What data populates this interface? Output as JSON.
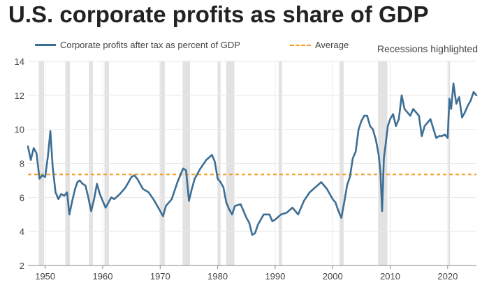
{
  "chart_data": {
    "type": "line",
    "title": "U.S. corporate profits as share of GDP",
    "xlabel": "",
    "ylabel": "",
    "xlim": [
      1947,
      2025
    ],
    "ylim": [
      2,
      14
    ],
    "x_ticks": [
      1950,
      1960,
      1970,
      1980,
      1990,
      2000,
      2010,
      2020
    ],
    "y_ticks": [
      2,
      4,
      6,
      8,
      10,
      12,
      14
    ],
    "legend": {
      "series_label": "Corporate profits after tax as percent of GDP",
      "average_label": "Average",
      "recessions_label": "Recessions highlighted"
    },
    "average": 7.35,
    "recessions": [
      [
        1948.9,
        1949.8
      ],
      [
        1953.5,
        1954.3
      ],
      [
        1957.6,
        1958.3
      ],
      [
        1960.3,
        1961.1
      ],
      [
        1969.9,
        1970.8
      ],
      [
        1973.9,
        1975.2
      ],
      [
        1980.0,
        1980.5
      ],
      [
        1981.5,
        1982.9
      ],
      [
        1990.6,
        1991.2
      ],
      [
        2001.2,
        2001.9
      ],
      [
        2007.9,
        2009.5
      ],
      [
        2020.1,
        2020.4
      ]
    ],
    "series": [
      {
        "name": "Corporate profits after tax as percent of GDP",
        "x": [
          1947.0,
          1947.5,
          1948.0,
          1948.5,
          1949.0,
          1949.5,
          1950.0,
          1950.5,
          1950.9,
          1951.3,
          1951.8,
          1952.3,
          1952.8,
          1953.3,
          1953.8,
          1954.2,
          1954.7,
          1955.2,
          1955.6,
          1956.0,
          1956.5,
          1957.0,
          1957.5,
          1958.0,
          1958.5,
          1959.0,
          1959.5,
          1960.0,
          1960.5,
          1961.0,
          1961.5,
          1962.0,
          1963.0,
          1964.0,
          1965.0,
          1965.5,
          1966.0,
          1967.0,
          1968.0,
          1969.0,
          1970.0,
          1970.5,
          1971.0,
          1972.0,
          1973.0,
          1974.0,
          1974.5,
          1975.0,
          1975.5,
          1976.0,
          1977.0,
          1978.0,
          1979.0,
          1979.5,
          1980.0,
          1980.5,
          1981.0,
          1981.5,
          1982.0,
          1982.5,
          1983.0,
          1984.0,
          1985.0,
          1985.5,
          1986.0,
          1986.5,
          1987.0,
          1988.0,
          1989.0,
          1989.5,
          1990.0,
          1991.0,
          1992.0,
          1993.0,
          1994.0,
          1995.0,
          1996.0,
          1997.0,
          1998.0,
          1999.0,
          2000.0,
          2000.5,
          2001.0,
          2001.5,
          2002.0,
          2002.5,
          2003.0,
          2003.5,
          2004.0,
          2004.5,
          2005.0,
          2005.5,
          2006.0,
          2006.5,
          2007.0,
          2007.5,
          2008.0,
          2008.3,
          2008.6,
          2008.9,
          2009.2,
          2009.6,
          2010.0,
          2010.5,
          2011.0,
          2011.5,
          2012.0,
          2012.5,
          2013.0,
          2013.5,
          2014.0,
          2015.0,
          2015.5,
          2016.0,
          2017.0,
          2018.0,
          2018.5,
          2019.0,
          2019.5,
          2020.0,
          2020.3,
          2020.6,
          2021.0,
          2021.5,
          2022.0,
          2022.5,
          2023.0,
          2023.5,
          2024.0,
          2024.5,
          2025.0
        ],
        "y": [
          9.0,
          8.2,
          8.9,
          8.6,
          7.1,
          7.3,
          7.2,
          8.5,
          9.9,
          7.8,
          6.3,
          5.9,
          6.2,
          6.1,
          6.3,
          5.0,
          5.8,
          6.5,
          6.9,
          7.0,
          6.8,
          6.7,
          6.0,
          5.2,
          5.9,
          6.8,
          6.2,
          5.8,
          5.4,
          5.7,
          6.0,
          5.9,
          6.2,
          6.6,
          7.2,
          7.3,
          7.1,
          6.5,
          6.3,
          5.8,
          5.2,
          4.9,
          5.5,
          5.9,
          6.9,
          7.7,
          7.6,
          5.8,
          6.5,
          7.1,
          7.7,
          8.2,
          8.5,
          8.1,
          7.1,
          6.9,
          6.6,
          5.7,
          5.3,
          5.0,
          5.5,
          5.6,
          4.8,
          4.5,
          3.8,
          3.9,
          4.4,
          5.0,
          5.0,
          4.6,
          4.7,
          5.0,
          5.1,
          5.4,
          5.0,
          5.8,
          6.3,
          6.6,
          6.9,
          6.5,
          5.9,
          5.7,
          5.2,
          4.8,
          5.7,
          6.7,
          7.2,
          8.3,
          8.7,
          10.0,
          10.5,
          10.8,
          10.8,
          10.2,
          10.0,
          9.4,
          8.5,
          7.5,
          5.2,
          8.3,
          9.1,
          10.2,
          10.6,
          10.9,
          10.2,
          10.6,
          12.0,
          11.2,
          11.0,
          10.8,
          11.2,
          10.8,
          9.6,
          10.2,
          10.6,
          9.5,
          9.6,
          9.6,
          9.7,
          9.5,
          11.8,
          11.2,
          12.7,
          11.5,
          11.9,
          10.7,
          11.0,
          11.4,
          11.7,
          12.2,
          12.0
        ]
      }
    ]
  }
}
